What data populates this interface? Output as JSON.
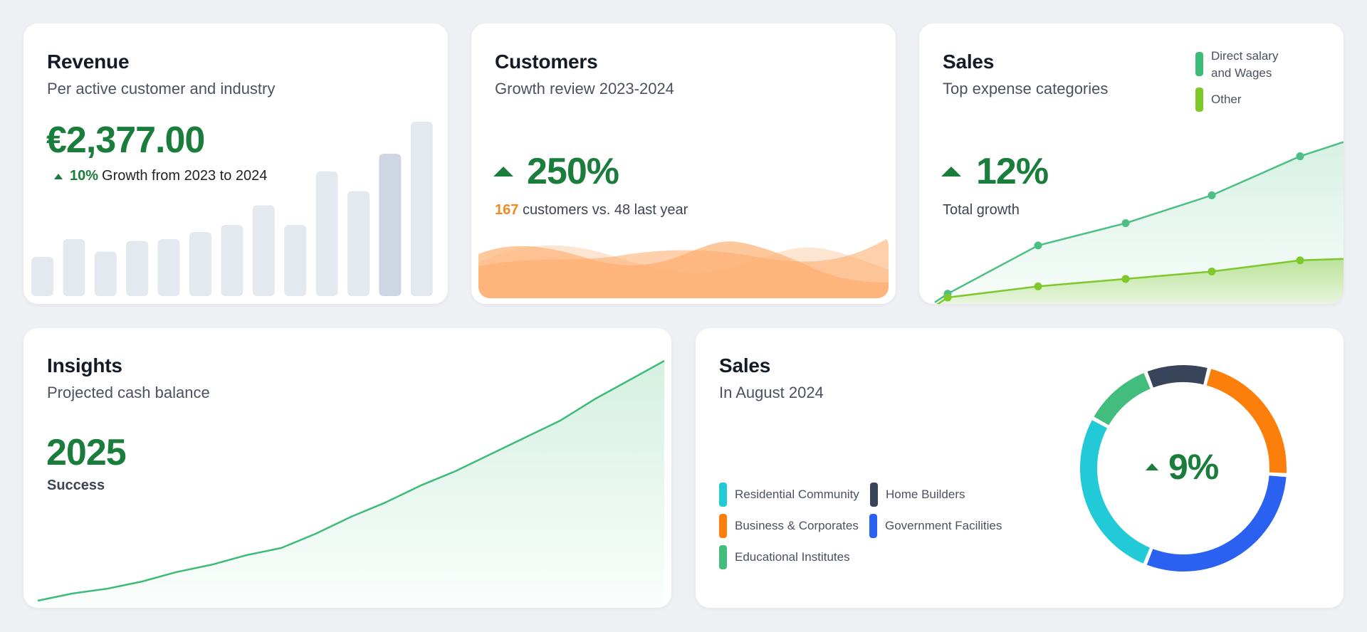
{
  "revenue": {
    "title": "Revenue",
    "subtitle": "Per active customer and industry",
    "amount": "€2,377.00",
    "growth_pct": "10%",
    "growth_text": "Growth from 2023 to 2024",
    "bars": [
      0.22,
      0.32,
      0.25,
      0.31,
      0.32,
      0.36,
      0.4,
      0.51,
      0.4,
      0.7,
      0.59,
      0.8,
      0.98
    ],
    "bar_color": "#e4e8ef",
    "bar_highlight_color": "#cdd6e2",
    "highlight_index": 11
  },
  "customers": {
    "title": "Customers",
    "subtitle": "Growth review 2023-2024",
    "percent": "250%",
    "count": "167",
    "count_text": "customers vs. 48 last year",
    "wave_color": "#fdb57c"
  },
  "sales_expense": {
    "title": "Sales",
    "subtitle": "Top expense categories",
    "percent": "12%",
    "caption": "Total growth",
    "legend": [
      {
        "line1": "Direct salary",
        "line2": "and Wages",
        "color": "#3dbb78"
      },
      {
        "line1": "Other",
        "line2": "",
        "color": "#7ec82a"
      }
    ],
    "chart_data": {
      "type": "line",
      "series": [
        {
          "name": "Direct salary and Wages",
          "values": [
            2,
            28,
            40,
            55,
            76
          ],
          "color": "#4cbf84"
        },
        {
          "name": "Other",
          "values": [
            0,
            6,
            10,
            14,
            20
          ],
          "color": "#7ec82a"
        }
      ],
      "ylim": [
        0,
        90
      ]
    }
  },
  "insights": {
    "title": "Insights",
    "subtitle": "Projected cash balance",
    "value": "2025",
    "caption": "Success",
    "chart_data": {
      "type": "area",
      "values": [
        0,
        3,
        5,
        8,
        12,
        15,
        19,
        22,
        28,
        35,
        41,
        48,
        54,
        61,
        68,
        75,
        84,
        92,
        100
      ],
      "ylim": [
        0,
        100
      ],
      "color": "#3dbb78"
    }
  },
  "sales_august": {
    "title": "Sales",
    "subtitle": "In August 2024",
    "percent": "9%",
    "legend": [
      {
        "label": "Residential Community",
        "color": "#22c9d6"
      },
      {
        "label": "Home Builders",
        "color": "#374459"
      },
      {
        "label": "Business & Corporates",
        "color": "#fb7f0a"
      },
      {
        "label": "Government Facilities",
        "color": "#2a61f0"
      },
      {
        "label": "Educational Institutes",
        "color": "#43bd7d"
      }
    ],
    "chart_data": {
      "type": "pie",
      "slices": [
        {
          "name": "Home Builders",
          "value": 10,
          "color": "#374459"
        },
        {
          "name": "Business & Corporates",
          "value": 22,
          "color": "#fb7f0a"
        },
        {
          "name": "Government Facilities",
          "value": 30,
          "color": "#2a61f0"
        },
        {
          "name": "Residential Community",
          "value": 27,
          "color": "#22c9d6"
        },
        {
          "name": "Educational Institutes",
          "value": 11,
          "color": "#43bd7d"
        }
      ]
    }
  }
}
